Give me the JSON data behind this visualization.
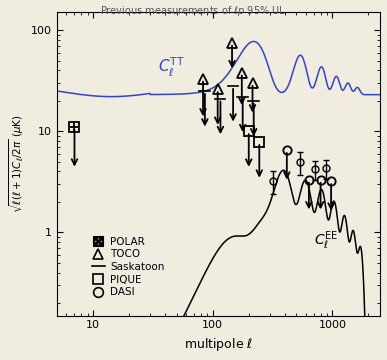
{
  "title": "Previous measurements of $\\ell p$ 95% UL",
  "xlabel": "multipole $\\ell$",
  "ylabel": "$\\sqrt{\\ell(\\ell+1)C_\\ell/2\\pi}$ ($\\mu$K)",
  "xlim": [
    5,
    2500
  ],
  "ylim": [
    0.15,
    150
  ],
  "bg_color": "#f0ece0",
  "POLAR": {
    "l": [
      7
    ],
    "val": [
      11.0
    ]
  },
  "TOCO": {
    "l": [
      83,
      110,
      145,
      175,
      215
    ],
    "val": [
      33,
      26,
      75,
      38,
      30
    ]
  },
  "Saskatoon": {
    "l": [
      86,
      116,
      148,
      178,
      220
    ],
    "val": [
      25,
      21,
      28,
      22,
      20
    ]
  },
  "PIQUE": {
    "l": [
      200,
      245
    ],
    "val": [
      10.0,
      7.8
    ]
  },
  "DASI": {
    "l": [
      321,
      416,
      531,
      636,
      716,
      796,
      876,
      975
    ],
    "val": [
      3.2,
      6.5,
      5.0,
      3.3,
      4.2,
      3.3,
      4.3,
      3.2
    ],
    "ul": [
      false,
      true,
      false,
      true,
      false,
      true,
      false,
      true
    ],
    "err": [
      0.8,
      1.3,
      1.3,
      0.9,
      0.9,
      0.9,
      0.9,
      0.9
    ]
  },
  "arrow_dex": 0.38
}
